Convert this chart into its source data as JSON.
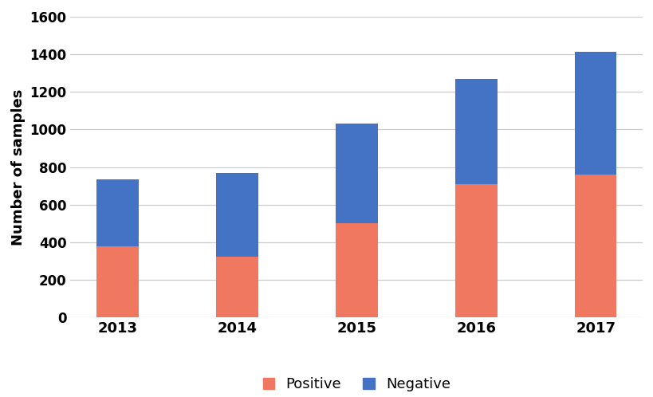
{
  "years": [
    "2013",
    "2014",
    "2015",
    "2016",
    "2017"
  ],
  "positive": [
    380,
    325,
    500,
    710,
    760
  ],
  "negative": [
    355,
    445,
    530,
    560,
    655
  ],
  "positive_color": "#F07860",
  "negative_color": "#4472C4",
  "ylabel": "Number of samples",
  "ylim": [
    0,
    1600
  ],
  "yticks": [
    0,
    200,
    400,
    600,
    800,
    1000,
    1200,
    1400,
    1600
  ],
  "legend_positive": "Positive",
  "legend_negative": "Negative",
  "background_color": "#ffffff",
  "grid_color": "#cccccc",
  "bar_width": 0.35
}
